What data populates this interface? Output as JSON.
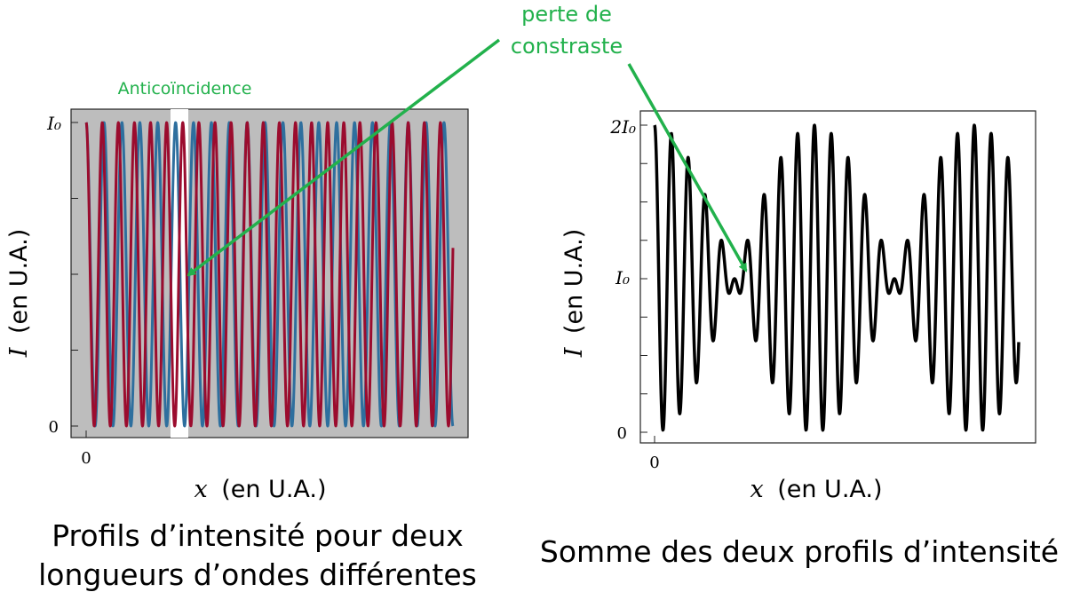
{
  "annotations": {
    "loss_label_line1": "perte de",
    "loss_label_line2": "constraste",
    "anticoincidence_label": "Anticoïncidence",
    "color": "#22b14c"
  },
  "captions": {
    "left_line1": "Profils d’intensité pour deux",
    "left_line2": "longueurs d’ondes différentes",
    "right": "Somme des deux profils d’intensité"
  },
  "chart_data": [
    {
      "type": "line",
      "title": "",
      "xlabel_var": "x",
      "xlabel_unit": "(en U.A.)",
      "ylabel_var": "I",
      "ylabel_unit": "(en U.A.)",
      "x_tick_labels": [
        {
          "x": 0,
          "label": "0"
        }
      ],
      "y_tick_labels": [
        {
          "y": 0,
          "label": "0"
        },
        {
          "y": 1,
          "label": "I₀"
        }
      ],
      "ylim": [
        0,
        1
      ],
      "xlim": [
        0,
        20.5
      ],
      "background": "#bdbdbd",
      "highlight_band": {
        "x_from": 4.6,
        "x_to": 5.6,
        "label": "Anticoïncidence"
      },
      "series": [
        {
          "color": "#2e6f9e",
          "model": "0.5*(1+cos(2*pi*x/lambda))",
          "lambda": 1.0,
          "x_end": 20.5
        },
        {
          "color": "#9b0c2e",
          "model": "0.5*(1+cos(2*pi*x/lambda))",
          "lambda": 0.9,
          "x_end": 20.5
        }
      ]
    },
    {
      "type": "line",
      "title": "",
      "xlabel_var": "x",
      "xlabel_unit": "(en U.A.)",
      "ylabel_var": "I",
      "ylabel_unit": "(en U.A.)",
      "x_tick_labels": [
        {
          "x": 0,
          "label": "0"
        }
      ],
      "y_tick_labels": [
        {
          "y": 0,
          "label": "0"
        },
        {
          "y": 1,
          "label": "I₀"
        },
        {
          "y": 2,
          "label": "2I₀"
        }
      ],
      "ylim": [
        0,
        2
      ],
      "xlim": [
        0,
        20.5
      ],
      "background": "#ffffff",
      "series": [
        {
          "color": "#000000",
          "model": "sum of left-chart series",
          "x_end": 20.5
        }
      ]
    }
  ]
}
